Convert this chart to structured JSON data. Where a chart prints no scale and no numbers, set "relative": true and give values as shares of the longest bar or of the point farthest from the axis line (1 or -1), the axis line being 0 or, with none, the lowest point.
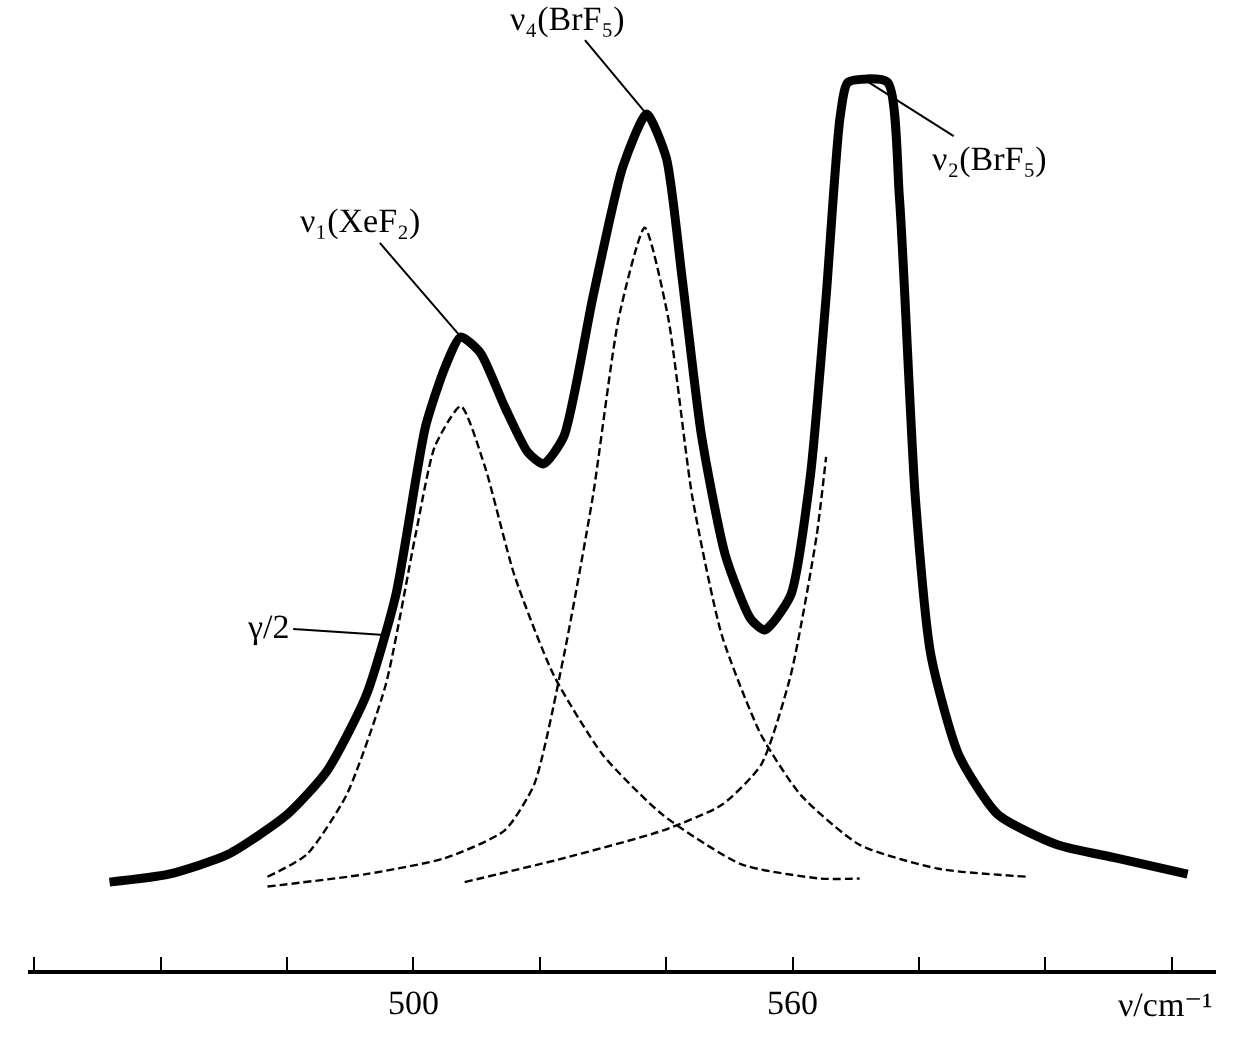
{
  "chart_data": {
    "type": "line",
    "relative": true,
    "xlabel": "ν/cm⁻¹",
    "xlim": [
      439,
      627
    ],
    "xticks": [
      {
        "value": 440,
        "label": null
      },
      {
        "value": 460,
        "label": null
      },
      {
        "value": 480,
        "label": null
      },
      500,
      {
        "value": 520,
        "label": null
      },
      {
        "value": 540,
        "label": null
      },
      560,
      {
        "value": 580,
        "label": null
      },
      {
        "value": 600,
        "label": null
      },
      {
        "value": 620,
        "label": null
      }
    ],
    "tick_labels": "x",
    "grid": false,
    "marker": "none",
    "series": [
      {
        "color": "#000000",
        "line_style": "solid",
        "x": [
          451.9,
          461.3,
          470.6,
          480,
          486.3,
          492.5,
          497.2,
          501.9,
          505,
          507.5,
          510.6,
          514.4,
          518.1,
          520.6,
          523.8,
          528.4,
          533.1,
          536.9,
          540,
          542.5,
          545.6,
          549.4,
          553.4,
          555.6,
          559.7,
          562.8,
          565.3,
          567.5,
          568.8,
          575,
          576.9,
          579.4,
          581.9,
          586.3,
          592.5,
          601.9,
          611.3,
          622.5
        ],
        "values": [
          0.099,
          0.108,
          0.13,
          0.175,
          0.224,
          0.309,
          0.422,
          0.612,
          0.679,
          0.713,
          0.695,
          0.635,
          0.583,
          0.57,
          0.601,
          0.758,
          0.904,
          0.964,
          0.915,
          0.78,
          0.601,
          0.466,
          0.395,
          0.383,
          0.422,
          0.556,
          0.758,
          0.96,
          1.0,
          1.0,
          0.87,
          0.534,
          0.354,
          0.242,
          0.175,
          0.141,
          0.126,
          0.108
        ]
      },
      {
        "color": "#000000",
        "line_style": "dashed",
        "x": [
          476.9,
          483.1,
          489.4,
          495.6,
          500.3,
          503.4,
          507.5,
          511.3,
          516,
          522.2,
          530,
          539.4,
          551.9,
          564.4,
          570.6
        ],
        "values": [
          0.105,
          0.13,
          0.197,
          0.321,
          0.489,
          0.59,
          0.635,
          0.567,
          0.444,
          0.332,
          0.242,
          0.175,
          0.119,
          0.103,
          0.103
        ]
      },
      {
        "color": "#000000",
        "line_style": "dashed",
        "x": [
          476.9,
          492.5,
          505,
          514.4,
          519.1,
          523.8,
          528.4,
          532.5,
          536.6,
          540.3,
          544.1,
          548.8,
          555,
          561.3,
          570.6,
          583.1,
          597.2
        ],
        "values": [
          0.094,
          0.108,
          0.126,
          0.157,
          0.209,
          0.354,
          0.534,
          0.735,
          0.836,
          0.735,
          0.534,
          0.377,
          0.265,
          0.197,
          0.141,
          0.114,
          0.105
        ]
      },
      {
        "color": "#000000",
        "line_style": "dashed",
        "x": [
          508.1,
          523.8,
          539.4,
          548.8,
          555,
          559.7,
          563.8,
          565.3
        ],
        "values": [
          0.099,
          0.126,
          0.157,
          0.186,
          0.231,
          0.332,
          0.489,
          0.578
        ]
      }
    ],
    "annotations": [
      {
        "text": "ν₁(XeF₂)",
        "x": 507.5,
        "y": 0.713
      },
      {
        "text": "ν₄(BrF₅)",
        "x": 536.9,
        "y": 0.964
      },
      {
        "text": "ν₂(BrF₅)",
        "x": 572,
        "y": 1.0
      },
      {
        "text": "γ/2",
        "x": 496,
        "y": 0.377
      }
    ]
  }
}
